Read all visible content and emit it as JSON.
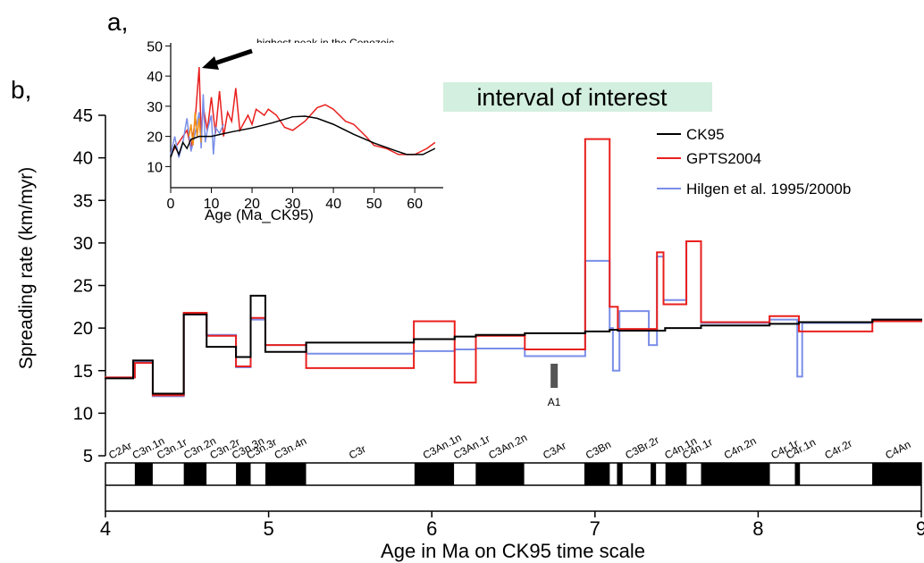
{
  "chart_data": [
    {
      "type": "step",
      "panel_label": "b,",
      "y_label": "Spreading rate (km/myr)",
      "x_label": "Age in Ma on CK95 time scale",
      "annotation": "interval of interest",
      "marker": {
        "label": "A1",
        "x": 6.75
      },
      "xlim": [
        4,
        9
      ],
      "xticks": [
        4,
        5,
        6,
        7,
        8,
        9
      ],
      "ylim": [
        5,
        45
      ],
      "yticks": [
        5,
        10,
        15,
        20,
        25,
        30,
        35,
        40,
        45
      ],
      "legend": "upper right",
      "series": [
        {
          "name": "CK95",
          "color": "#000000",
          "x_edges": [
            4.0,
            4.17,
            4.29,
            4.48,
            4.62,
            4.8,
            4.89,
            4.98,
            5.23,
            5.89,
            6.14,
            6.27,
            6.57,
            6.94,
            7.09,
            7.14,
            7.43,
            7.65,
            8.07,
            8.25,
            8.7,
            9.0
          ],
          "values": [
            14.1,
            16.2,
            12.3,
            21.6,
            17.8,
            16.6,
            23.8,
            17.2,
            18.3,
            18.7,
            19.0,
            19.2,
            19.4,
            19.6,
            19.8,
            19.7,
            20.0,
            20.3,
            20.5,
            20.7,
            21.0
          ]
        },
        {
          "name": "GPTS2004",
          "color": "#e8201e",
          "x_edges": [
            4.0,
            4.18,
            4.29,
            4.48,
            4.62,
            4.8,
            4.89,
            4.98,
            5.23,
            5.89,
            6.14,
            6.27,
            6.57,
            6.94,
            7.09,
            7.14,
            7.38,
            7.42,
            7.56,
            7.65,
            8.07,
            8.25,
            8.7,
            9.0
          ],
          "values": [
            14.2,
            15.9,
            12.1,
            21.8,
            19.1,
            15.5,
            21.2,
            18.0,
            15.3,
            20.8,
            13.6,
            19.1,
            17.5,
            42.2,
            22.5,
            19.9,
            28.9,
            22.8,
            30.2,
            20.7,
            21.4,
            19.6,
            20.8
          ]
        },
        {
          "name": "Hilgen et al. 1995/2000b",
          "color": "#7a8ee8",
          "x_edges": [
            4.0,
            4.18,
            4.29,
            4.48,
            4.62,
            4.8,
            4.89,
            4.98,
            5.23,
            5.89,
            6.14,
            6.27,
            6.57,
            6.94,
            7.09,
            7.11,
            7.15,
            7.33,
            7.38,
            7.42,
            7.56,
            7.65,
            8.07,
            8.24,
            8.27,
            8.7,
            9.0
          ],
          "values": [
            14.2,
            16.0,
            12.0,
            21.6,
            19.2,
            15.4,
            21.0,
            18.0,
            17.0,
            17.3,
            17.5,
            17.6,
            16.7,
            27.9,
            20.0,
            15.0,
            22.0,
            18.0,
            28.4,
            23.3,
            30.2,
            20.6,
            21.0,
            14.3,
            20.6,
            21.0
          ]
        }
      ],
      "chrons": [
        {
          "name": "C2Ar",
          "start": 3.58,
          "end": 4.18,
          "color": "#ffffff"
        },
        {
          "name": "C3n.1n",
          "start": 4.18,
          "end": 4.29,
          "color": "#000000"
        },
        {
          "name": "C3n.1r",
          "start": 4.29,
          "end": 4.48,
          "color": "#ffffff"
        },
        {
          "name": "C3n.2n",
          "start": 4.48,
          "end": 4.62,
          "color": "#000000"
        },
        {
          "name": "C3n.2r",
          "start": 4.62,
          "end": 4.8,
          "color": "#ffffff"
        },
        {
          "name": "C3n.3n",
          "start": 4.8,
          "end": 4.89,
          "color": "#000000"
        },
        {
          "name": "C3n.3r",
          "start": 4.89,
          "end": 4.98,
          "color": "#ffffff"
        },
        {
          "name": "C3n.4n",
          "start": 4.98,
          "end": 5.23,
          "color": "#000000"
        },
        {
          "name": "C3r",
          "start": 5.23,
          "end": 5.894,
          "color": "#ffffff"
        },
        {
          "name": "C3An.1n",
          "start": 5.894,
          "end": 6.137,
          "color": "#000000"
        },
        {
          "name": "C3An.1r",
          "start": 6.137,
          "end": 6.269,
          "color": "#ffffff"
        },
        {
          "name": "C3An.2n",
          "start": 6.269,
          "end": 6.567,
          "color": "#000000"
        },
        {
          "name": "C3Ar",
          "start": 6.567,
          "end": 6.935,
          "color": "#ffffff"
        },
        {
          "name": "C3Bn",
          "start": 6.935,
          "end": 7.091,
          "color": "#000000"
        },
        {
          "name": null,
          "start": 7.091,
          "end": 7.135,
          "color": "#ffffff"
        },
        {
          "name": null,
          "start": 7.135,
          "end": 7.17,
          "color": "#000000"
        },
        {
          "name": "C3Br.2r",
          "start": 7.17,
          "end": 7.341,
          "color": "#ffffff"
        },
        {
          "name": null,
          "start": 7.341,
          "end": 7.375,
          "color": "#000000"
        },
        {
          "name": null,
          "start": 7.375,
          "end": 7.432,
          "color": "#ffffff"
        },
        {
          "name": "C4n.1n",
          "start": 7.432,
          "end": 7.562,
          "color": "#000000"
        },
        {
          "name": "C4n.1r",
          "start": 7.562,
          "end": 7.65,
          "color": "#ffffff"
        },
        {
          "name": "C4n.2n",
          "start": 7.65,
          "end": 8.072,
          "color": "#000000"
        },
        {
          "name": "C4r.1r",
          "start": 8.072,
          "end": 8.225,
          "color": "#ffffff"
        },
        {
          "name": "C4r.1n",
          "start": 8.225,
          "end": 8.257,
          "color": "#000000"
        },
        {
          "name": "C4r.2r",
          "start": 8.257,
          "end": 8.699,
          "color": "#ffffff"
        },
        {
          "name": "C4An",
          "start": 8.699,
          "end": 9.025,
          "color": "#000000"
        }
      ]
    },
    {
      "type": "line",
      "panel_label": "a,",
      "x_label": "Age (Ma_CK95)",
      "annotation": "highest peak in the Cenozoic",
      "xlim": [
        0,
        67
      ],
      "xticks": [
        0,
        10,
        20,
        30,
        40,
        50,
        60
      ],
      "ylim": [
        3,
        51
      ],
      "yticks": [
        10,
        20,
        30,
        40,
        50
      ],
      "series": [
        {
          "color": "#e8201e",
          "x": [
            0,
            2,
            4,
            5,
            6,
            7,
            7.5,
            8,
            9,
            10,
            11,
            12,
            13,
            14,
            15,
            16,
            17,
            19,
            20,
            21,
            23,
            24,
            26,
            28,
            30,
            33,
            36,
            38,
            40,
            43,
            45,
            48,
            50,
            53,
            56,
            60,
            63,
            65
          ],
          "values": [
            14,
            18,
            22,
            16,
            25,
            43,
            20,
            30,
            22,
            33,
            21,
            35,
            20,
            28,
            25,
            36,
            22,
            27,
            24,
            29,
            27,
            29,
            27,
            23,
            22,
            25,
            29.5,
            30.5,
            29,
            25,
            24,
            20,
            17,
            16,
            14,
            14,
            16,
            18
          ]
        },
        {
          "color": "#7a8ee8",
          "x": [
            0,
            1,
            2,
            3,
            4,
            5,
            6,
            7,
            7.5,
            8,
            8.5,
            9,
            10,
            10.5,
            11,
            12,
            13
          ],
          "values": [
            14,
            20,
            13,
            18,
            26,
            15,
            21,
            28,
            16,
            34,
            18,
            22,
            27,
            14,
            23,
            21,
            24
          ]
        },
        {
          "color": "#f0901a",
          "x": [
            4.5,
            5,
            5.5,
            6,
            6.5,
            7,
            7.5
          ],
          "values": [
            20,
            24,
            17,
            28,
            20,
            26,
            18
          ]
        },
        {
          "color": "#000000",
          "x": [
            0,
            1,
            2,
            3,
            4,
            5,
            7,
            10,
            15,
            20,
            25,
            30,
            33,
            36,
            40,
            45,
            50,
            55,
            58,
            62,
            65
          ],
          "values": [
            13,
            17,
            14,
            18,
            16,
            19,
            20,
            20,
            21.5,
            22.8,
            24.5,
            26.5,
            26.7,
            26,
            24,
            20.7,
            17.8,
            15.4,
            14,
            14,
            16
          ]
        }
      ]
    }
  ]
}
